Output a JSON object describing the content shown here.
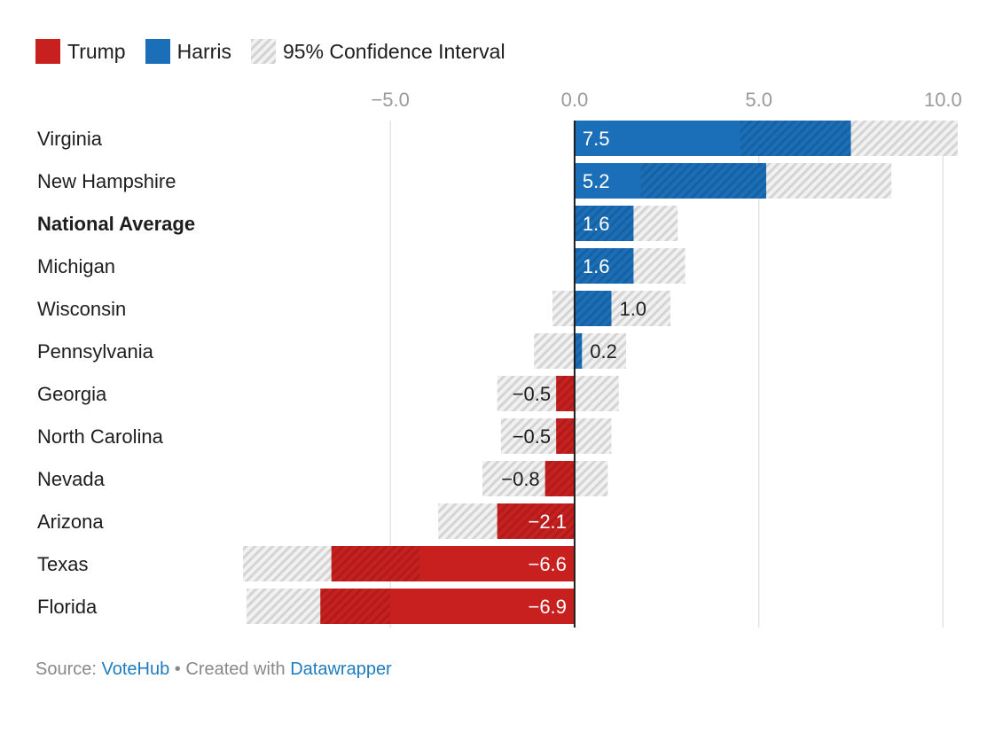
{
  "legend": [
    {
      "label": "Trump",
      "color": "#c8201f",
      "kind": "solid"
    },
    {
      "label": "Harris",
      "color": "#1a6fb8",
      "kind": "solid"
    },
    {
      "label": "95% Confidence Interval",
      "color": "#d5d5d5",
      "kind": "hatch"
    }
  ],
  "footer": {
    "source_label": "Source:",
    "source_link": "VoteHub",
    "separator": "•",
    "created_with": "Created with",
    "tool_link": "Datawrapper"
  },
  "chart_data": {
    "type": "bar",
    "orientation": "horizontal",
    "xlim": [
      -9.0,
      10.4
    ],
    "x_ticks": [
      -5.0,
      0.0,
      5.0,
      10.0
    ],
    "x_tick_labels": [
      "−5.0",
      "0.0",
      "5.0",
      "10.0"
    ],
    "grid": true,
    "legend_position": "top-left",
    "colors": {
      "trump": "#c8201f",
      "harris": "#1a6fb8",
      "ci": "#d5d5d5"
    },
    "categories": [
      "Virginia",
      "New Hampshire",
      "National Average",
      "Michigan",
      "Wisconsin",
      "Pennsylvania",
      "Georgia",
      "North Carolina",
      "Nevada",
      "Arizona",
      "Texas",
      "Florida"
    ],
    "bold_categories": [
      "National Average"
    ],
    "values": [
      7.5,
      5.2,
      1.6,
      1.6,
      1.0,
      0.2,
      -0.5,
      -0.5,
      -0.8,
      -2.1,
      -6.6,
      -6.9
    ],
    "value_labels": [
      "7.5",
      "5.2",
      "1.6",
      "1.6",
      "1.0",
      "0.2",
      "−0.5",
      "−0.5",
      "−0.8",
      "−2.1",
      "−6.6",
      "−6.9"
    ],
    "ci_low": [
      4.5,
      1.8,
      0.0,
      0.0,
      -0.6,
      -1.1,
      -2.1,
      -2.0,
      -2.5,
      -3.7,
      -9.0,
      -8.9
    ],
    "ci_high": [
      10.4,
      8.6,
      2.8,
      3.0,
      2.6,
      1.4,
      1.2,
      1.0,
      0.9,
      0.0,
      -4.2,
      -5.0
    ]
  }
}
